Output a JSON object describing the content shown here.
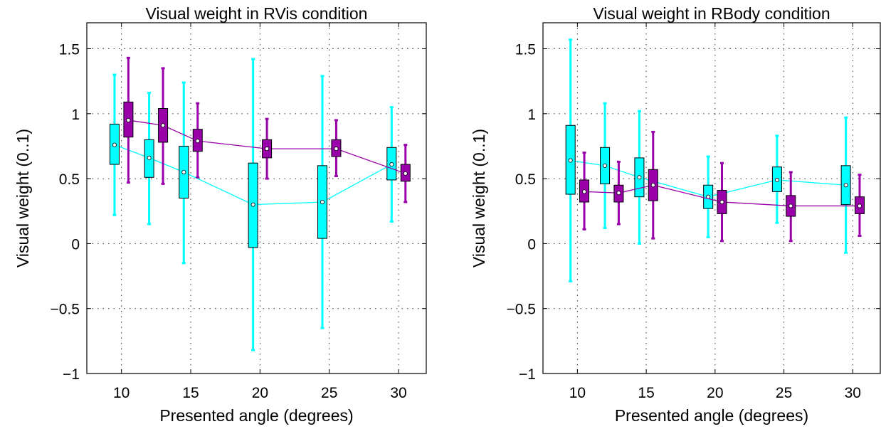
{
  "chart_data": [
    {
      "type": "box",
      "title": "Visual weight in RVis condition",
      "xlabel": "Presented angle (degrees)",
      "ylabel": "Visual weight (0..1)",
      "xlim": [
        7.5,
        32
      ],
      "ylim": [
        -1,
        1.7
      ],
      "xticks": [
        10,
        15,
        20,
        25,
        30
      ],
      "yticks": [
        -1,
        -0.5,
        0,
        0.5,
        1,
        1.5
      ],
      "grid": true,
      "series": [
        {
          "color": "#00ffff",
          "boxes": [
            {
              "x": 9.5,
              "whisker_low": 0.22,
              "q1": 0.61,
              "median": 0.76,
              "q3": 0.92,
              "whisker_high": 1.3
            },
            {
              "x": 12.0,
              "whisker_low": 0.15,
              "q1": 0.51,
              "median": 0.66,
              "q3": 0.8,
              "whisker_high": 1.16
            },
            {
              "x": 14.5,
              "whisker_low": -0.15,
              "q1": 0.35,
              "median": 0.55,
              "q3": 0.75,
              "whisker_high": 1.24
            },
            {
              "x": 19.5,
              "whisker_low": -0.82,
              "q1": -0.03,
              "median": 0.3,
              "q3": 0.62,
              "whisker_high": 1.42
            },
            {
              "x": 24.5,
              "whisker_low": -0.65,
              "q1": 0.04,
              "median": 0.32,
              "q3": 0.6,
              "whisker_high": 1.29
            },
            {
              "x": 29.5,
              "whisker_low": 0.17,
              "q1": 0.49,
              "median": 0.61,
              "q3": 0.74,
              "whisker_high": 1.05
            }
          ]
        },
        {
          "color": "#9900aa",
          "boxes": [
            {
              "x": 10.5,
              "whisker_low": 0.47,
              "q1": 0.82,
              "median": 0.95,
              "q3": 1.09,
              "whisker_high": 1.43
            },
            {
              "x": 13.0,
              "whisker_low": 0.46,
              "q1": 0.78,
              "median": 0.91,
              "q3": 1.04,
              "whisker_high": 1.35
            },
            {
              "x": 15.5,
              "whisker_low": 0.51,
              "q1": 0.71,
              "median": 0.79,
              "q3": 0.88,
              "whisker_high": 1.08
            },
            {
              "x": 20.5,
              "whisker_low": 0.5,
              "q1": 0.66,
              "median": 0.73,
              "q3": 0.8,
              "whisker_high": 0.96
            },
            {
              "x": 25.5,
              "whisker_low": 0.52,
              "q1": 0.67,
              "median": 0.73,
              "q3": 0.8,
              "whisker_high": 0.95
            },
            {
              "x": 30.5,
              "whisker_low": 0.32,
              "q1": 0.48,
              "median": 0.54,
              "q3": 0.61,
              "whisker_high": 0.76
            }
          ]
        }
      ]
    },
    {
      "type": "box",
      "title": "Visual weight in RBody condition",
      "xlabel": "Presented angle (degrees)",
      "ylabel": "Visual weight (0..1)",
      "xlim": [
        7.5,
        32
      ],
      "ylim": [
        -1,
        1.7
      ],
      "xticks": [
        10,
        15,
        20,
        25,
        30
      ],
      "yticks": [
        -1,
        -0.5,
        0,
        0.5,
        1,
        1.5
      ],
      "grid": true,
      "series": [
        {
          "color": "#00ffff",
          "boxes": [
            {
              "x": 9.5,
              "whisker_low": -0.29,
              "q1": 0.38,
              "median": 0.64,
              "q3": 0.91,
              "whisker_high": 1.57
            },
            {
              "x": 12.0,
              "whisker_low": 0.12,
              "q1": 0.46,
              "median": 0.6,
              "q3": 0.74,
              "whisker_high": 1.08
            },
            {
              "x": 14.5,
              "whisker_low": 0.0,
              "q1": 0.36,
              "median": 0.51,
              "q3": 0.66,
              "whisker_high": 1.02
            },
            {
              "x": 19.5,
              "whisker_low": 0.05,
              "q1": 0.27,
              "median": 0.36,
              "q3": 0.45,
              "whisker_high": 0.67
            },
            {
              "x": 24.5,
              "whisker_low": 0.16,
              "q1": 0.4,
              "median": 0.49,
              "q3": 0.59,
              "whisker_high": 0.83
            },
            {
              "x": 29.5,
              "whisker_low": -0.07,
              "q1": 0.3,
              "median": 0.45,
              "q3": 0.6,
              "whisker_high": 0.97
            }
          ]
        },
        {
          "color": "#9900aa",
          "boxes": [
            {
              "x": 10.5,
              "whisker_low": 0.11,
              "q1": 0.32,
              "median": 0.4,
              "q3": 0.49,
              "whisker_high": 0.7
            },
            {
              "x": 13.0,
              "whisker_low": 0.15,
              "q1": 0.32,
              "median": 0.39,
              "q3": 0.45,
              "whisker_high": 0.63
            },
            {
              "x": 15.5,
              "whisker_low": 0.04,
              "q1": 0.33,
              "median": 0.45,
              "q3": 0.57,
              "whisker_high": 0.86
            },
            {
              "x": 20.5,
              "whisker_low": 0.02,
              "q1": 0.23,
              "median": 0.32,
              "q3": 0.41,
              "whisker_high": 0.62
            },
            {
              "x": 25.5,
              "whisker_low": 0.02,
              "q1": 0.21,
              "median": 0.29,
              "q3": 0.37,
              "whisker_high": 0.55
            },
            {
              "x": 30.5,
              "whisker_low": 0.06,
              "q1": 0.23,
              "median": 0.29,
              "q3": 0.36,
              "whisker_high": 0.53
            }
          ]
        }
      ]
    }
  ]
}
